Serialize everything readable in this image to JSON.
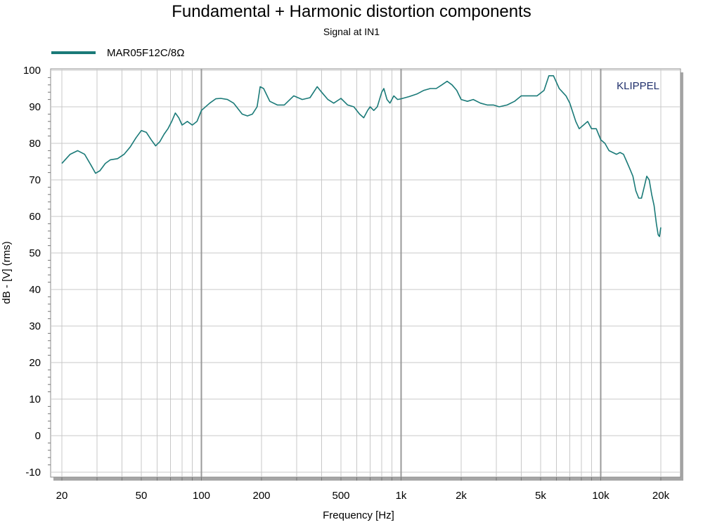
{
  "chart_data": {
    "type": "line",
    "title": "Fundamental + Harmonic distortion components",
    "subtitle": "Signal at IN1",
    "xlabel": "Frequency [Hz]",
    "ylabel": "dB - [V]  (rms)",
    "x_scale": "log",
    "xlim": [
      20,
      20000
    ],
    "ylim": [
      -10,
      100
    ],
    "x_ticks": [
      {
        "value": 20,
        "label": "20"
      },
      {
        "value": 50,
        "label": "50"
      },
      {
        "value": 100,
        "label": "100"
      },
      {
        "value": 200,
        "label": "200"
      },
      {
        "value": 500,
        "label": "500"
      },
      {
        "value": 1000,
        "label": "1k"
      },
      {
        "value": 2000,
        "label": "2k"
      },
      {
        "value": 5000,
        "label": "5k"
      },
      {
        "value": 10000,
        "label": "10k"
      },
      {
        "value": 20000,
        "label": "20k"
      }
    ],
    "y_ticks": [
      -10,
      0,
      10,
      20,
      30,
      40,
      50,
      60,
      70,
      80,
      90,
      100
    ],
    "grid": true,
    "legend_position": "top-left",
    "watermark": "KLIPPEL",
    "series": [
      {
        "name": "MAR05F12C/8Ω",
        "color": "#1a7a78",
        "points": [
          [
            20,
            74.5
          ],
          [
            22,
            77
          ],
          [
            24,
            78
          ],
          [
            26,
            77
          ],
          [
            28,
            74
          ],
          [
            29.5,
            71.8
          ],
          [
            31,
            72.5
          ],
          [
            33,
            74.5
          ],
          [
            35,
            75.5
          ],
          [
            38,
            75.8
          ],
          [
            41,
            77
          ],
          [
            44,
            79
          ],
          [
            47,
            81.5
          ],
          [
            50,
            83.5
          ],
          [
            53,
            83
          ],
          [
            56,
            81
          ],
          [
            59,
            79.3
          ],
          [
            62,
            80.5
          ],
          [
            65,
            82.5
          ],
          [
            68,
            84
          ],
          [
            71,
            86
          ],
          [
            74,
            88.3
          ],
          [
            77,
            87
          ],
          [
            80,
            85
          ],
          [
            85,
            86
          ],
          [
            90,
            85
          ],
          [
            95,
            86
          ],
          [
            100,
            89
          ],
          [
            110,
            91
          ],
          [
            118,
            92.2
          ],
          [
            125,
            92.3
          ],
          [
            135,
            92
          ],
          [
            145,
            91
          ],
          [
            160,
            88
          ],
          [
            170,
            87.5
          ],
          [
            180,
            88
          ],
          [
            190,
            90
          ],
          [
            197,
            95.5
          ],
          [
            205,
            95
          ],
          [
            220,
            91.5
          ],
          [
            240,
            90.5
          ],
          [
            260,
            90.5
          ],
          [
            290,
            93
          ],
          [
            320,
            92
          ],
          [
            350,
            92.5
          ],
          [
            380,
            95.5
          ],
          [
            400,
            94
          ],
          [
            430,
            92
          ],
          [
            460,
            91
          ],
          [
            500,
            92.3
          ],
          [
            540,
            90.5
          ],
          [
            580,
            90
          ],
          [
            620,
            88
          ],
          [
            650,
            87
          ],
          [
            680,
            89
          ],
          [
            700,
            90
          ],
          [
            730,
            89
          ],
          [
            760,
            90
          ],
          [
            800,
            94
          ],
          [
            820,
            95
          ],
          [
            850,
            92
          ],
          [
            880,
            91
          ],
          [
            920,
            93
          ],
          [
            960,
            92
          ],
          [
            1000,
            92.2
          ],
          [
            1100,
            92.8
          ],
          [
            1200,
            93.5
          ],
          [
            1300,
            94.5
          ],
          [
            1400,
            95
          ],
          [
            1500,
            95
          ],
          [
            1600,
            96
          ],
          [
            1700,
            97
          ],
          [
            1800,
            96
          ],
          [
            1900,
            94.5
          ],
          [
            2000,
            92
          ],
          [
            2150,
            91.5
          ],
          [
            2300,
            92
          ],
          [
            2500,
            91
          ],
          [
            2700,
            90.5
          ],
          [
            2900,
            90.5
          ],
          [
            3100,
            90
          ],
          [
            3400,
            90.5
          ],
          [
            3700,
            91.5
          ],
          [
            4000,
            93
          ],
          [
            4400,
            93
          ],
          [
            4800,
            93
          ],
          [
            5200,
            94.5
          ],
          [
            5500,
            98.5
          ],
          [
            5800,
            98.5
          ],
          [
            6200,
            95
          ],
          [
            6700,
            93
          ],
          [
            7000,
            91
          ],
          [
            7500,
            86
          ],
          [
            7800,
            84
          ],
          [
            8200,
            85
          ],
          [
            8600,
            86
          ],
          [
            9000,
            84
          ],
          [
            9500,
            84
          ],
          [
            10000,
            81
          ],
          [
            10500,
            80
          ],
          [
            11000,
            78
          ],
          [
            12000,
            77
          ],
          [
            12500,
            77.5
          ],
          [
            13000,
            77
          ],
          [
            13500,
            75
          ],
          [
            14000,
            73
          ],
          [
            14500,
            71
          ],
          [
            15000,
            67
          ],
          [
            15500,
            65
          ],
          [
            16000,
            65
          ],
          [
            16500,
            68
          ],
          [
            17000,
            71
          ],
          [
            17500,
            70
          ],
          [
            18000,
            66
          ],
          [
            18500,
            63
          ],
          [
            19000,
            58
          ],
          [
            19400,
            55
          ],
          [
            19700,
            54.5
          ],
          [
            20000,
            57
          ]
        ]
      }
    ]
  }
}
